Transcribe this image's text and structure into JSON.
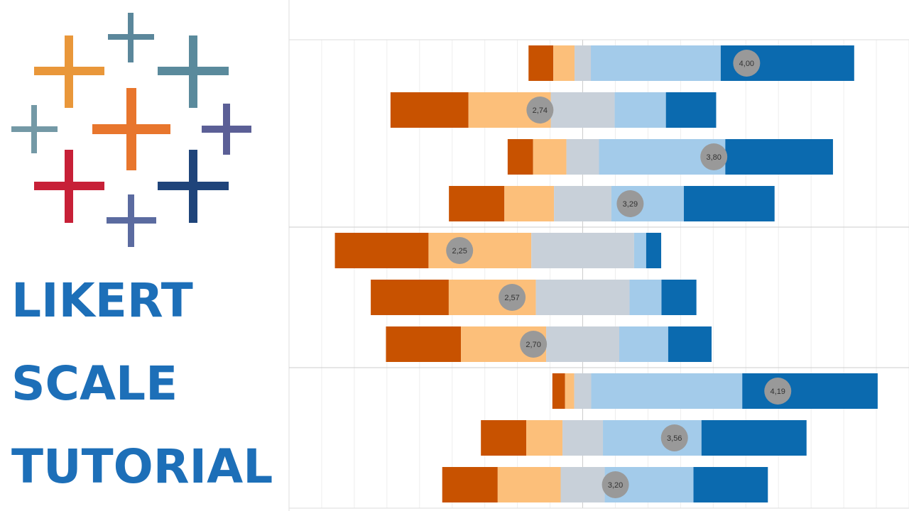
{
  "chart_data": {
    "type": "diverging-bar",
    "title_lines": [
      "LIKERT",
      "SCALE",
      "TUTORIAL"
    ],
    "xlim": [
      -90,
      100
    ],
    "xticks": [
      -80,
      -70,
      -60,
      -50,
      -40,
      -30,
      -20,
      -10,
      0,
      10,
      20,
      30,
      40,
      50,
      60,
      70,
      80,
      90,
      100
    ],
    "x2lim": [
      1.21,
      4.99
    ],
    "grid": true,
    "series": [
      {
        "color": "#c85200",
        "values": [
          7.6,
          23.9,
          7.8,
          17,
          28.7,
          23.9,
          23,
          3.9,
          13.9,
          17
        ]
      },
      {
        "color": "#fcbf7a",
        "values": [
          6.5,
          25.2,
          10.2,
          15.2,
          31.5,
          26.7,
          26.1,
          2.8,
          11.1,
          19.3
        ]
      },
      {
        "color": "#c8d0d9",
        "values": [
          5,
          19.6,
          10,
          17.6,
          31.5,
          28.7,
          22.4,
          5.2,
          12.4,
          13.5
        ]
      },
      {
        "color": "#a3cbea",
        "values": [
          39.8,
          15.7,
          38.7,
          22.2,
          3.7,
          9.8,
          15,
          46.3,
          30.2,
          27.2
        ]
      },
      {
        "color": "#0b6aaf",
        "values": [
          40.9,
          15.4,
          33,
          27.8,
          4.6,
          10.7,
          13.3,
          41.5,
          32.2,
          22.8
        ]
      }
    ],
    "means": [
      {
        "value": 4.0,
        "label": "4,00"
      },
      {
        "value": 2.74,
        "label": "2,74"
      },
      {
        "value": 3.8,
        "label": "3,80"
      },
      {
        "value": 3.29,
        "label": "3,29"
      },
      {
        "value": 2.25,
        "label": "2,25"
      },
      {
        "value": 2.57,
        "label": "2,57"
      },
      {
        "value": 2.7,
        "label": "2,70"
      },
      {
        "value": 4.19,
        "label": "4,19"
      },
      {
        "value": 3.56,
        "label": "3,56"
      },
      {
        "value": 3.2,
        "label": "3,20"
      }
    ],
    "mean_color": "#999999"
  }
}
